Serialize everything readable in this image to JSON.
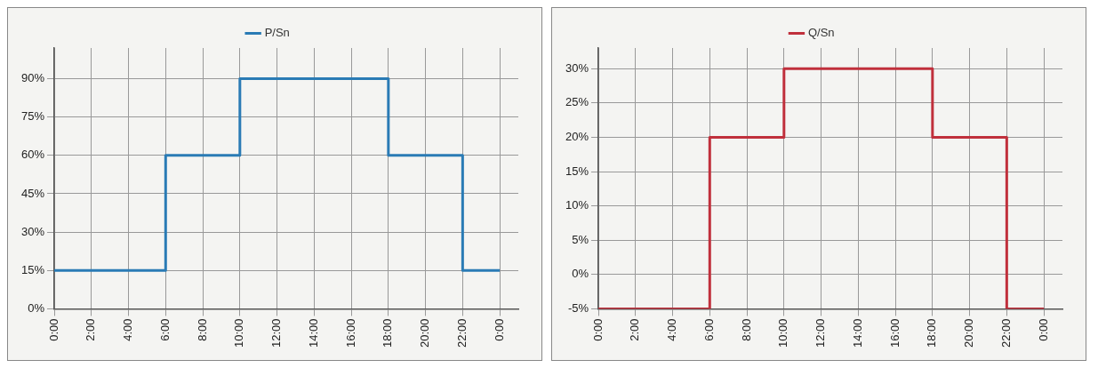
{
  "chart_data": [
    {
      "type": "step",
      "x": [
        0,
        6,
        10,
        18,
        22,
        24
      ],
      "series": [
        {
          "name": "P/Sn",
          "color": "#2a7bb5",
          "values": [
            15,
            60,
            90,
            60,
            15,
            15
          ]
        }
      ],
      "xlim": [
        0,
        25
      ],
      "xticks": [
        {
          "value": 0,
          "label": "0:00"
        },
        {
          "value": 2,
          "label": "2:00"
        },
        {
          "value": 4,
          "label": "4:00"
        },
        {
          "value": 6,
          "label": "6:00"
        },
        {
          "value": 8,
          "label": "8:00"
        },
        {
          "value": 10,
          "label": "10:00"
        },
        {
          "value": 12,
          "label": "12:00"
        },
        {
          "value": 14,
          "label": "14:00"
        },
        {
          "value": 16,
          "label": "16:00"
        },
        {
          "value": 18,
          "label": "18:00"
        },
        {
          "value": 20,
          "label": "20:00"
        },
        {
          "value": 22,
          "label": "22:00"
        },
        {
          "value": 24,
          "label": "0:00"
        }
      ],
      "ylim": [
        0,
        102
      ],
      "yticks": [
        {
          "value": 0,
          "label": "0%"
        },
        {
          "value": 15,
          "label": "15%"
        },
        {
          "value": 30,
          "label": "30%"
        },
        {
          "value": 45,
          "label": "45%"
        },
        {
          "value": 60,
          "label": "60%"
        },
        {
          "value": 75,
          "label": "75%"
        },
        {
          "value": 90,
          "label": "90%"
        }
      ],
      "grid": true,
      "legend": "top",
      "marker": "none",
      "line_style": "solid"
    },
    {
      "type": "step",
      "x": [
        0,
        6,
        10,
        18,
        22,
        24
      ],
      "series": [
        {
          "name": "Q/Sn",
          "color": "#c0303c",
          "values": [
            -5,
            20,
            30,
            20,
            -5,
            -5
          ]
        }
      ],
      "xlim": [
        0,
        25
      ],
      "xticks": [
        {
          "value": 0,
          "label": "0:00"
        },
        {
          "value": 2,
          "label": "2:00"
        },
        {
          "value": 4,
          "label": "4:00"
        },
        {
          "value": 6,
          "label": "6:00"
        },
        {
          "value": 8,
          "label": "8:00"
        },
        {
          "value": 10,
          "label": "10:00"
        },
        {
          "value": 12,
          "label": "12:00"
        },
        {
          "value": 14,
          "label": "14:00"
        },
        {
          "value": 16,
          "label": "16:00"
        },
        {
          "value": 18,
          "label": "18:00"
        },
        {
          "value": 20,
          "label": "20:00"
        },
        {
          "value": 22,
          "label": "22:00"
        },
        {
          "value": 24,
          "label": "0:00"
        }
      ],
      "ylim": [
        -5,
        33
      ],
      "yticks": [
        {
          "value": -5,
          "label": "-5%"
        },
        {
          "value": 0,
          "label": "0%"
        },
        {
          "value": 5,
          "label": "5%"
        },
        {
          "value": 10,
          "label": "10%"
        },
        {
          "value": 15,
          "label": "15%"
        },
        {
          "value": 20,
          "label": "20%"
        },
        {
          "value": 25,
          "label": "25%"
        },
        {
          "value": 30,
          "label": "30%"
        }
      ],
      "grid": true,
      "legend": "top",
      "marker": "none",
      "line_style": "solid"
    }
  ]
}
